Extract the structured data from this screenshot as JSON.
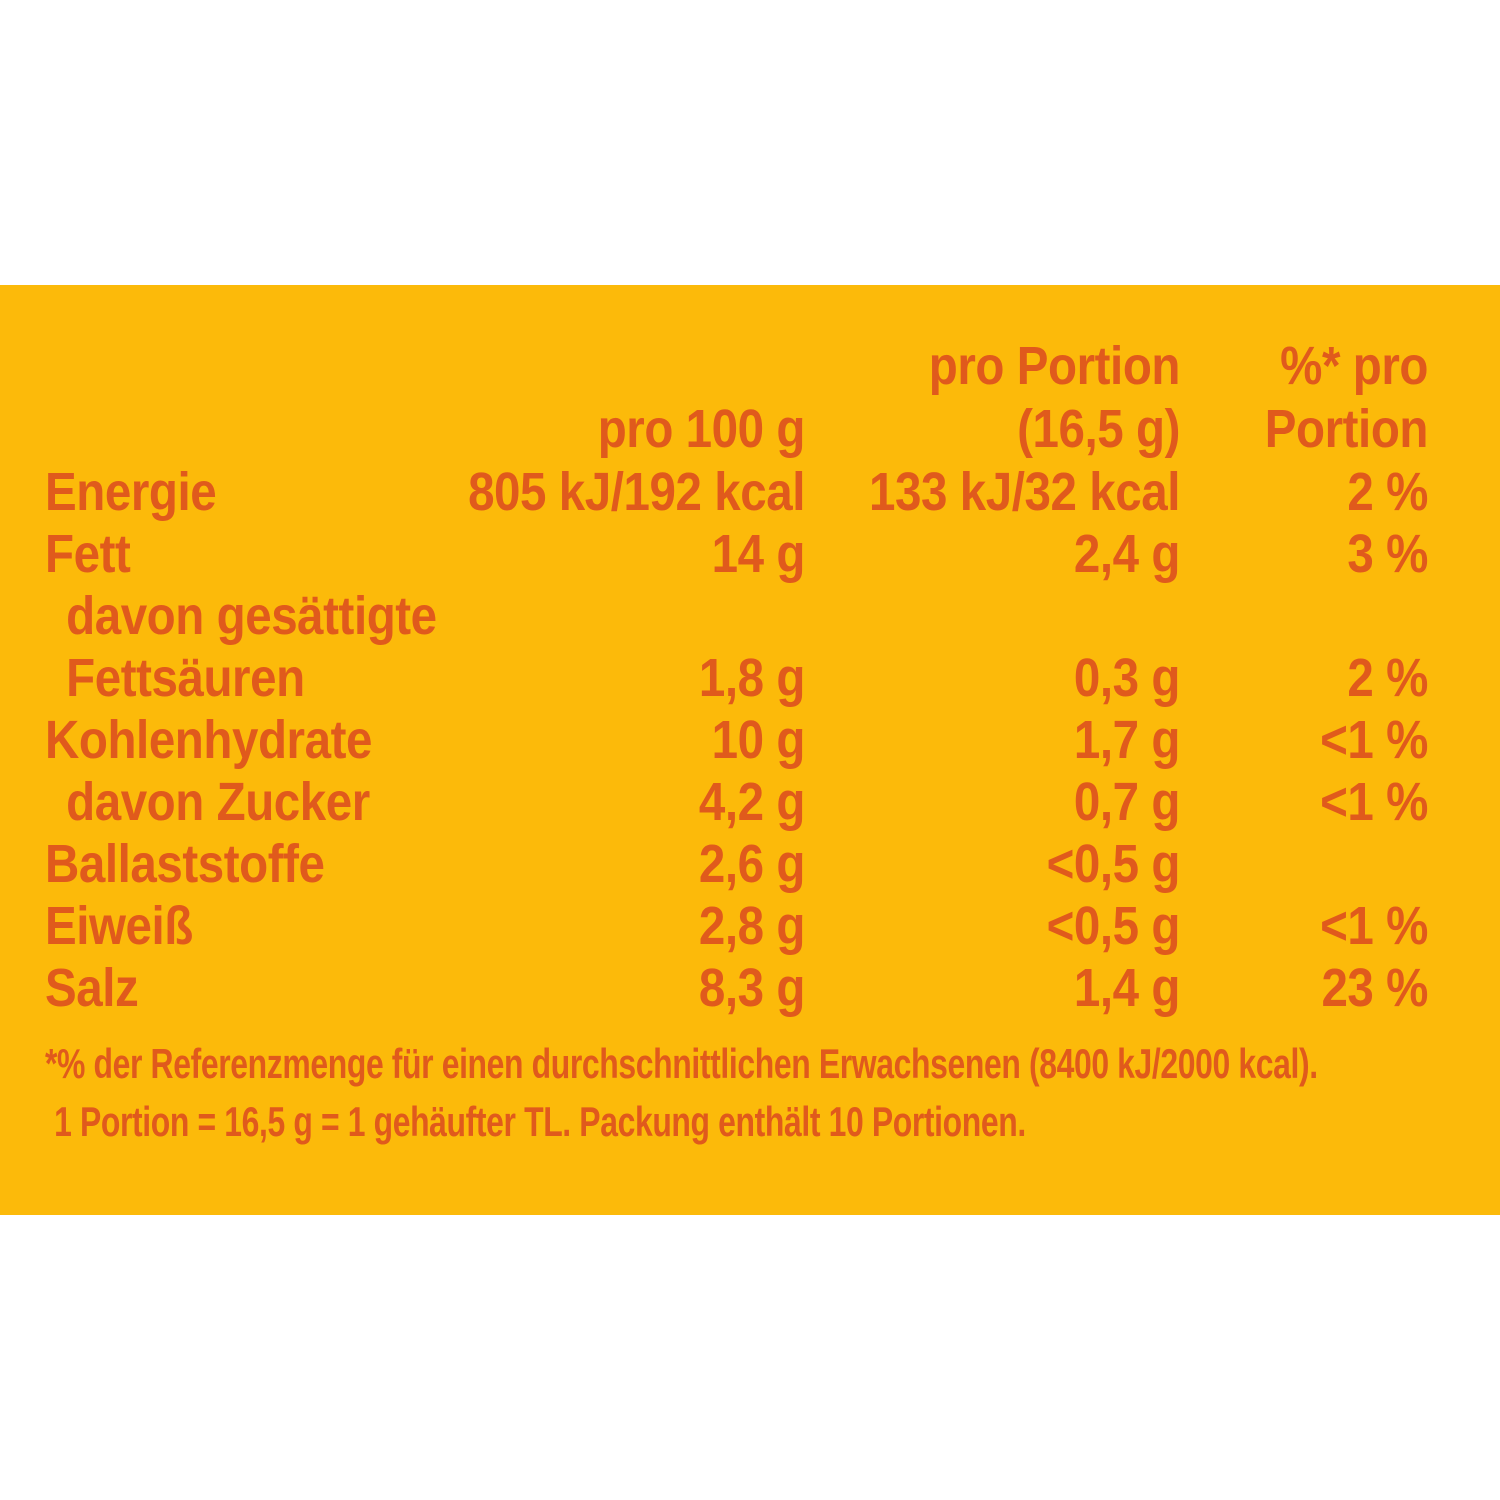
{
  "colors": {
    "panel_bg": "#FCBA0A",
    "text": "#E05A1C",
    "page_bg": "#FFFFFF"
  },
  "table": {
    "header": {
      "col1": "pro 100 g",
      "col2_line1": "pro Portion",
      "col2_line2": "(16,5 g)",
      "col3_line1": "%* pro",
      "col3_line2": "Portion"
    },
    "rows": [
      {
        "label": "Energie",
        "per100": "805 kJ/192 kcal",
        "portion": "133 kJ/32 kcal",
        "percent": "2 %"
      },
      {
        "label": "Fett",
        "per100": "14 g",
        "portion": "2,4 g",
        "percent": "3 %"
      },
      {
        "label_line1": "davon gesättigte",
        "label_line2": "Fettsäuren",
        "per100": "1,8 g",
        "portion": "0,3 g",
        "percent": "2 %"
      },
      {
        "label": "Kohlenhydrate",
        "per100": "10 g",
        "portion": "1,7 g",
        "percent": "<1 %"
      },
      {
        "label": "davon Zucker",
        "per100": "4,2 g",
        "portion": "0,7 g",
        "percent": "<1 %"
      },
      {
        "label": "Ballaststoffe",
        "per100": "2,6 g",
        "portion": "<0,5 g",
        "percent": ""
      },
      {
        "label": "Eiweiß",
        "per100": "2,8 g",
        "portion": "<0,5 g",
        "percent": "<1 %"
      },
      {
        "label": "Salz",
        "per100": "8,3 g",
        "portion": "1,4 g",
        "percent": "23 %"
      }
    ]
  },
  "footnotes": [
    "*% der Referenzmenge für einen durchschnittlichen Erwachsenen (8400 kJ/2000 kcal).",
    "1 Portion = 16,5 g = 1 gehäufter TL. Packung enthält 10 Portionen."
  ]
}
